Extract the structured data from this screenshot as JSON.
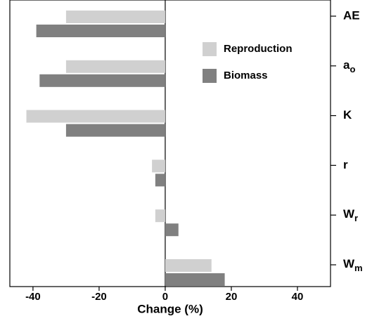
{
  "chart_data": {
    "type": "barh",
    "x_label": "Change (%)",
    "categories": [
      "AE",
      "ao",
      "K",
      "r",
      "Wr",
      "Wm"
    ],
    "series": [
      {
        "name": "Reproduction",
        "color": "#d0d0d0",
        "values": [
          -30,
          -30,
          -42,
          -4,
          -3,
          14
        ]
      },
      {
        "name": "Biomass",
        "color": "#808080",
        "values": [
          -39,
          -38,
          -30,
          -3,
          4,
          18
        ]
      }
    ],
    "xlim": [
      -47,
      50
    ],
    "xticks": [
      -40,
      -20,
      0,
      20,
      40
    ],
    "legend": "upper right"
  }
}
